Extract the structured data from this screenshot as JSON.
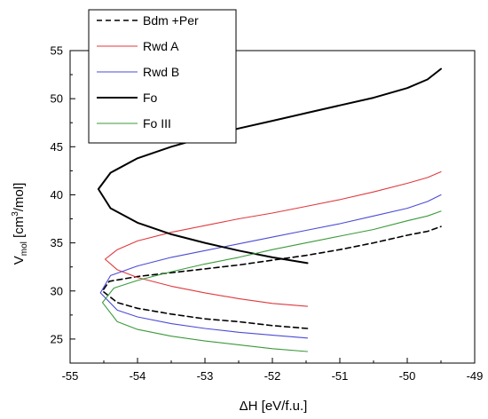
{
  "chart_data": {
    "type": "line",
    "title": "",
    "xlabel": "ΔH [eV/f.u.]",
    "ylabel_main": "V",
    "ylabel_sub": "mol",
    "ylabel_rest": " [cm",
    "ylabel_sup": "3",
    "ylabel_end": "/mol]",
    "xlim": [
      -55,
      -49
    ],
    "ylim": [
      22.5,
      55
    ],
    "xticks": [
      -55,
      -54,
      -53,
      -52,
      -51,
      -50,
      -49
    ],
    "yticks": [
      25,
      30,
      35,
      40,
      45,
      50,
      55
    ],
    "xtick_labels": [
      "-55",
      "-54",
      "-53",
      "-52",
      "-51",
      "-50",
      "-49"
    ],
    "ytick_labels": [
      "25",
      "30",
      "35",
      "40",
      "45",
      "50",
      "55"
    ],
    "grid": false,
    "legend_position": "top-left",
    "series": [
      {
        "name": "Bdm +Per",
        "color": "#000000",
        "dash": true,
        "width": 1.6,
        "x": [
          -51.48,
          -52.0,
          -52.5,
          -53.0,
          -53.5,
          -54.0,
          -54.3,
          -54.52,
          -54.42,
          -54.0,
          -53.5,
          -53.0,
          -52.5,
          -52.0,
          -51.5,
          -51.0,
          -50.5,
          -50.0,
          -49.7,
          -49.5
        ],
        "y": [
          26.1,
          26.4,
          26.8,
          27.1,
          27.6,
          28.2,
          28.8,
          30.0,
          31.0,
          31.5,
          31.9,
          32.3,
          32.7,
          33.2,
          33.7,
          34.3,
          35.0,
          35.8,
          36.2,
          36.7
        ]
      },
      {
        "name": "Rwd A",
        "color": "#e0393e",
        "dash": false,
        "width": 1.1,
        "x": [
          -51.48,
          -52.0,
          -52.5,
          -53.0,
          -53.5,
          -54.0,
          -54.3,
          -54.48,
          -54.3,
          -54.0,
          -53.5,
          -53.0,
          -52.5,
          -52.0,
          -51.5,
          -51.0,
          -50.5,
          -50.0,
          -49.7,
          -49.5
        ],
        "y": [
          28.4,
          28.7,
          29.2,
          29.8,
          30.5,
          31.4,
          32.2,
          33.3,
          34.3,
          35.2,
          36.1,
          36.8,
          37.5,
          38.1,
          38.8,
          39.5,
          40.3,
          41.2,
          41.8,
          42.4
        ]
      },
      {
        "name": "Rwd B",
        "color": "#4b4bd6",
        "dash": false,
        "width": 1.1,
        "x": [
          -51.48,
          -52.0,
          -52.5,
          -53.0,
          -53.5,
          -54.0,
          -54.3,
          -54.55,
          -54.4,
          -54.0,
          -53.5,
          -53.0,
          -52.5,
          -52.0,
          -51.5,
          -51.0,
          -50.5,
          -50.0,
          -49.7,
          -49.5
        ],
        "y": [
          25.1,
          25.4,
          25.7,
          26.1,
          26.6,
          27.3,
          28.0,
          29.8,
          31.6,
          32.6,
          33.5,
          34.2,
          34.9,
          35.6,
          36.3,
          37.0,
          37.8,
          38.6,
          39.3,
          40.0
        ]
      },
      {
        "name": "Fo",
        "color": "#000000",
        "dash": false,
        "width": 2.0,
        "x": [
          -51.48,
          -52.0,
          -52.5,
          -53.0,
          -53.5,
          -54.0,
          -54.4,
          -54.58,
          -54.4,
          -54.0,
          -53.5,
          -53.0,
          -52.5,
          -52.0,
          -51.5,
          -51.0,
          -50.5,
          -50.0,
          -49.7,
          -49.5
        ],
        "y": [
          32.9,
          33.5,
          34.2,
          35.0,
          35.9,
          37.1,
          38.6,
          40.6,
          42.3,
          43.8,
          45.0,
          46.0,
          46.9,
          47.7,
          48.5,
          49.3,
          50.1,
          51.1,
          52.0,
          53.1
        ]
      },
      {
        "name": "Fo III",
        "color": "#3a9a3a",
        "dash": false,
        "width": 1.1,
        "x": [
          -51.48,
          -52.0,
          -52.5,
          -53.0,
          -53.5,
          -54.0,
          -54.3,
          -54.52,
          -54.35,
          -54.0,
          -53.5,
          -53.0,
          -52.5,
          -52.0,
          -51.5,
          -51.0,
          -50.5,
          -50.0,
          -49.7,
          -49.5
        ],
        "y": [
          23.7,
          24.0,
          24.4,
          24.8,
          25.3,
          26.0,
          26.8,
          28.8,
          30.3,
          31.1,
          32.0,
          32.8,
          33.5,
          34.3,
          35.0,
          35.7,
          36.4,
          37.3,
          37.8,
          38.3
        ]
      }
    ]
  }
}
